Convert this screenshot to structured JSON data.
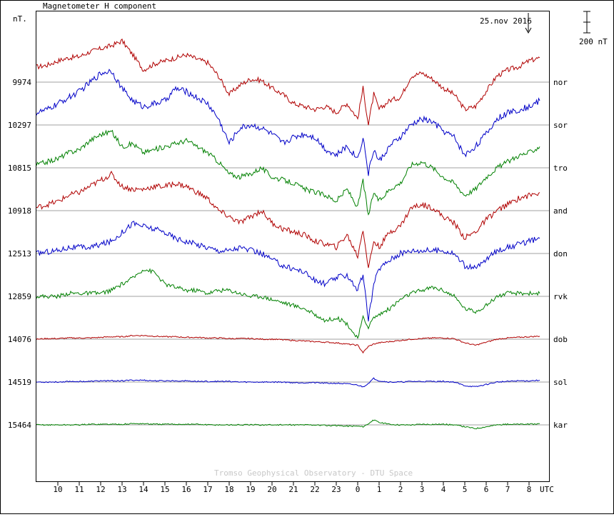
{
  "chart_data": {
    "type": "line",
    "title": "Magnetometer H component",
    "y_unit": "nT.",
    "date_label": "25.nov 2016",
    "scale_bar_label": "200 nT",
    "x_unit": "UTC",
    "footer": "Tromso Geophysical Observatory - DTU Space",
    "x_ticks": [
      "10",
      "11",
      "12",
      "13",
      "14",
      "15",
      "16",
      "17",
      "18",
      "19",
      "20",
      "21",
      "22",
      "23",
      "0",
      "1",
      "2",
      "3",
      "4",
      "5",
      "6",
      "7",
      "8"
    ],
    "grid": false,
    "colors": {
      "red": "#b00000",
      "blue": "#0000c8",
      "green": "#008000",
      "baseline": "#a0a0a0"
    },
    "x_hours_utc": [
      9.0,
      9.5,
      10.0,
      10.5,
      11.0,
      11.5,
      12.0,
      12.5,
      13.0,
      13.5,
      14.0,
      14.5,
      15.0,
      15.5,
      16.0,
      16.5,
      17.0,
      17.5,
      18.0,
      18.5,
      19.0,
      19.5,
      20.0,
      20.5,
      21.0,
      21.5,
      22.0,
      22.5,
      23.0,
      23.5,
      24.0,
      24.25,
      24.5,
      24.75,
      25.0,
      25.5,
      26.0,
      26.5,
      27.0,
      27.5,
      28.0,
      28.5,
      29.0,
      29.5,
      30.0,
      30.5,
      31.0,
      31.5,
      32.0,
      32.5
    ],
    "series": [
      {
        "name": "nor",
        "baseline": "9974",
        "color": "red",
        "values": [
          25,
          28,
          35,
          40,
          42,
          50,
          55,
          60,
          68,
          45,
          20,
          30,
          35,
          40,
          45,
          38,
          32,
          10,
          -20,
          -5,
          5,
          3,
          -10,
          -20,
          -35,
          -40,
          -45,
          -40,
          -50,
          -35,
          -60,
          -10,
          -70,
          -20,
          -45,
          -30,
          -25,
          10,
          15,
          5,
          -10,
          -20,
          -45,
          -40,
          -15,
          10,
          20,
          25,
          35,
          40
        ]
      },
      {
        "name": "sor",
        "baseline": "10297",
        "color": "blue",
        "values": [
          20,
          25,
          35,
          45,
          55,
          70,
          85,
          90,
          60,
          40,
          30,
          35,
          40,
          60,
          55,
          45,
          35,
          10,
          -30,
          -5,
          0,
          -5,
          -15,
          -30,
          -20,
          -15,
          -20,
          -40,
          -50,
          -35,
          -55,
          -20,
          -80,
          -40,
          -60,
          -35,
          -20,
          0,
          10,
          5,
          -10,
          -20,
          -50,
          -35,
          -15,
          10,
          20,
          25,
          30,
          40
        ]
      },
      {
        "name": "tro",
        "baseline": "10815",
        "color": "green",
        "values": [
          5,
          10,
          15,
          25,
          30,
          45,
          55,
          60,
          35,
          40,
          25,
          30,
          35,
          40,
          45,
          35,
          25,
          10,
          -10,
          -15,
          -10,
          0,
          -15,
          -20,
          -25,
          -35,
          -40,
          -45,
          -55,
          -35,
          -65,
          -20,
          -80,
          -40,
          -55,
          -35,
          -25,
          5,
          10,
          0,
          -15,
          -25,
          -45,
          -35,
          -15,
          0,
          10,
          20,
          25,
          35
        ]
      },
      {
        "name": "and",
        "baseline": "10918",
        "color": "red",
        "values": [
          5,
          10,
          15,
          25,
          30,
          40,
          50,
          60,
          40,
          35,
          35,
          40,
          40,
          45,
          40,
          30,
          20,
          0,
          -10,
          -20,
          -10,
          0,
          -20,
          -30,
          -35,
          -40,
          -50,
          -55,
          -60,
          -40,
          -75,
          -30,
          -95,
          -50,
          -60,
          -35,
          -25,
          5,
          10,
          5,
          -10,
          -20,
          -45,
          -35,
          -15,
          0,
          10,
          20,
          25,
          30
        ]
      },
      {
        "name": "don",
        "baseline": "12513",
        "color": "blue",
        "values": [
          0,
          3,
          5,
          10,
          10,
          10,
          15,
          20,
          35,
          50,
          45,
          40,
          35,
          25,
          20,
          15,
          10,
          5,
          5,
          10,
          5,
          0,
          -10,
          -20,
          -25,
          -30,
          -45,
          -50,
          -40,
          -35,
          -60,
          -35,
          -110,
          -50,
          -25,
          -10,
          0,
          5,
          5,
          5,
          5,
          0,
          -20,
          -25,
          -10,
          5,
          10,
          15,
          20,
          25
        ]
      },
      {
        "name": "rvk",
        "baseline": "12859",
        "color": "green",
        "values": [
          0,
          0,
          0,
          5,
          5,
          5,
          5,
          10,
          20,
          30,
          45,
          40,
          20,
          15,
          10,
          10,
          5,
          10,
          10,
          5,
          0,
          0,
          -5,
          -10,
          -15,
          -20,
          -30,
          -40,
          -35,
          -45,
          -70,
          -35,
          -50,
          -35,
          -30,
          -20,
          -5,
          5,
          10,
          15,
          10,
          0,
          -20,
          -25,
          -15,
          0,
          5,
          5,
          5,
          5
        ]
      },
      {
        "name": "dob",
        "baseline": "14076",
        "color": "red",
        "values": [
          0,
          1,
          1,
          2,
          2,
          2,
          3,
          4,
          4,
          6,
          6,
          5,
          4,
          4,
          3,
          3,
          2,
          2,
          1,
          1,
          1,
          0,
          0,
          -1,
          -2,
          -3,
          -4,
          -5,
          -6,
          -8,
          -10,
          -22,
          -12,
          -8,
          -6,
          -4,
          -2,
          0,
          1,
          2,
          2,
          1,
          -6,
          -10,
          -5,
          0,
          2,
          3,
          4,
          5
        ]
      },
      {
        "name": "sol",
        "baseline": "14519",
        "color": "blue",
        "values": [
          0,
          0,
          0,
          1,
          1,
          1,
          2,
          2,
          2,
          3,
          3,
          2,
          2,
          2,
          2,
          1,
          1,
          1,
          1,
          0,
          0,
          0,
          0,
          0,
          -1,
          -1,
          -1,
          -2,
          -2,
          -3,
          -5,
          -8,
          -2,
          6,
          2,
          0,
          0,
          1,
          1,
          1,
          1,
          0,
          -6,
          -8,
          -4,
          0,
          1,
          2,
          2,
          3
        ]
      },
      {
        "name": "kar",
        "baseline": "15464",
        "color": "green",
        "values": [
          0,
          0,
          0,
          0,
          0,
          1,
          1,
          1,
          1,
          2,
          2,
          1,
          1,
          1,
          1,
          1,
          0,
          0,
          0,
          0,
          0,
          0,
          0,
          0,
          0,
          0,
          0,
          -1,
          -1,
          -2,
          -2,
          -3,
          2,
          8,
          4,
          1,
          0,
          0,
          1,
          1,
          1,
          0,
          -3,
          -6,
          -3,
          0,
          1,
          1,
          1,
          2
        ]
      }
    ]
  }
}
